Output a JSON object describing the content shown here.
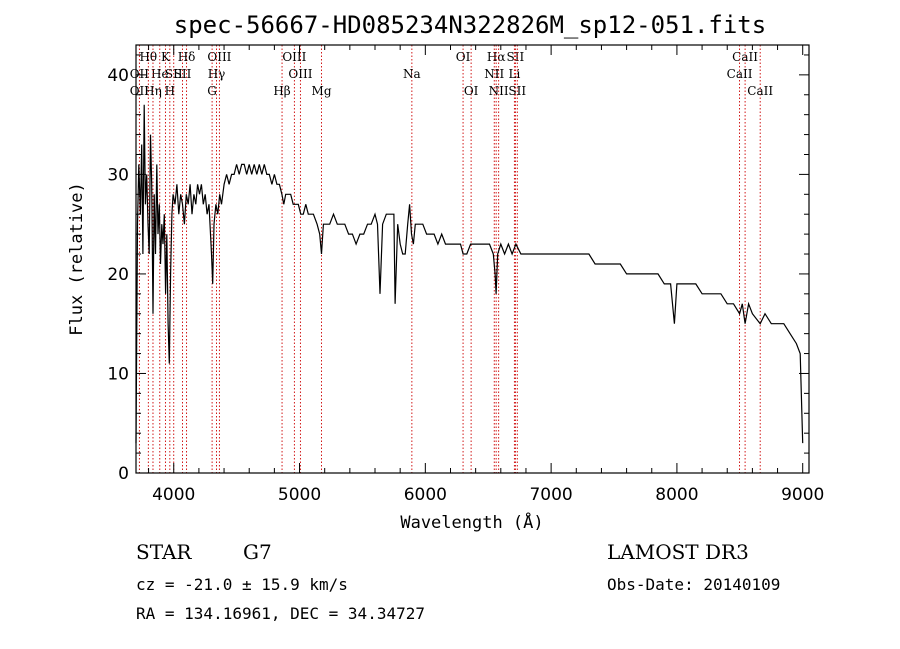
{
  "chart_data": {
    "type": "line",
    "title": "spec-56667-HD085234N322826M_sp12-051.fits",
    "xlabel": "Wavelength (Å)",
    "ylabel": "Flux (relative)",
    "xlim": [
      3700,
      9050
    ],
    "ylim": [
      0,
      43
    ],
    "x_ticks": [
      4000,
      5000,
      6000,
      7000,
      8000,
      9000
    ],
    "y_ticks": [
      0,
      10,
      20,
      30,
      40
    ],
    "grid": false,
    "series": [
      {
        "points": [
          [
            3700,
            3
          ],
          [
            3712,
            25
          ],
          [
            3722,
            31
          ],
          [
            3735,
            26
          ],
          [
            3745,
            33
          ],
          [
            3755,
            22
          ],
          [
            3765,
            37
          ],
          [
            3775,
            27
          ],
          [
            3785,
            30
          ],
          [
            3795,
            25
          ],
          [
            3805,
            22
          ],
          [
            3815,
            34
          ],
          [
            3825,
            29
          ],
          [
            3835,
            16
          ],
          [
            3845,
            28
          ],
          [
            3855,
            22
          ],
          [
            3865,
            31
          ],
          [
            3875,
            24
          ],
          [
            3885,
            27
          ],
          [
            3895,
            21
          ],
          [
            3905,
            25
          ],
          [
            3915,
            23
          ],
          [
            3925,
            26
          ],
          [
            3935,
            18
          ],
          [
            3945,
            24
          ],
          [
            3955,
            15
          ],
          [
            3965,
            11
          ],
          [
            3975,
            20
          ],
          [
            3985,
            26
          ],
          [
            3995,
            28
          ],
          [
            4010,
            27
          ],
          [
            4025,
            29
          ],
          [
            4040,
            26
          ],
          [
            4055,
            28
          ],
          [
            4070,
            27
          ],
          [
            4085,
            25
          ],
          [
            4100,
            28
          ],
          [
            4115,
            27
          ],
          [
            4130,
            29
          ],
          [
            4145,
            26
          ],
          [
            4160,
            28
          ],
          [
            4175,
            27
          ],
          [
            4190,
            29
          ],
          [
            4205,
            28
          ],
          [
            4220,
            29
          ],
          [
            4235,
            27
          ],
          [
            4250,
            28
          ],
          [
            4265,
            26
          ],
          [
            4280,
            27
          ],
          [
            4300,
            22
          ],
          [
            4310,
            19
          ],
          [
            4320,
            25
          ],
          [
            4335,
            27
          ],
          [
            4350,
            26
          ],
          [
            4365,
            28
          ],
          [
            4380,
            27
          ],
          [
            4400,
            29
          ],
          [
            4420,
            30
          ],
          [
            4440,
            29
          ],
          [
            4460,
            30
          ],
          [
            4480,
            30
          ],
          [
            4500,
            31
          ],
          [
            4520,
            30
          ],
          [
            4540,
            31
          ],
          [
            4560,
            31
          ],
          [
            4580,
            30
          ],
          [
            4600,
            31
          ],
          [
            4620,
            30
          ],
          [
            4640,
            31
          ],
          [
            4660,
            30
          ],
          [
            4680,
            31
          ],
          [
            4700,
            30
          ],
          [
            4720,
            31
          ],
          [
            4740,
            30
          ],
          [
            4760,
            30
          ],
          [
            4780,
            29
          ],
          [
            4800,
            30
          ],
          [
            4820,
            29
          ],
          [
            4840,
            29
          ],
          [
            4860,
            28
          ],
          [
            4875,
            27
          ],
          [
            4890,
            28
          ],
          [
            4910,
            28
          ],
          [
            4930,
            28
          ],
          [
            4950,
            27
          ],
          [
            4970,
            27
          ],
          [
            4990,
            27
          ],
          [
            5010,
            26
          ],
          [
            5030,
            26
          ],
          [
            5050,
            27
          ],
          [
            5070,
            26
          ],
          [
            5090,
            26
          ],
          [
            5110,
            26
          ],
          [
            5140,
            25
          ],
          [
            5160,
            24
          ],
          [
            5175,
            22
          ],
          [
            5190,
            25
          ],
          [
            5210,
            25
          ],
          [
            5240,
            25
          ],
          [
            5270,
            26
          ],
          [
            5300,
            25
          ],
          [
            5330,
            25
          ],
          [
            5360,
            25
          ],
          [
            5390,
            24
          ],
          [
            5420,
            24
          ],
          [
            5450,
            23
          ],
          [
            5480,
            24
          ],
          [
            5510,
            24
          ],
          [
            5540,
            25
          ],
          [
            5570,
            25
          ],
          [
            5600,
            26
          ],
          [
            5620,
            25
          ],
          [
            5640,
            18
          ],
          [
            5660,
            25
          ],
          [
            5690,
            26
          ],
          [
            5720,
            26
          ],
          [
            5750,
            26
          ],
          [
            5760,
            17
          ],
          [
            5780,
            25
          ],
          [
            5800,
            23
          ],
          [
            5820,
            22
          ],
          [
            5840,
            22
          ],
          [
            5860,
            25
          ],
          [
            5875,
            27
          ],
          [
            5890,
            24
          ],
          [
            5905,
            23
          ],
          [
            5920,
            25
          ],
          [
            5950,
            25
          ],
          [
            5980,
            25
          ],
          [
            6010,
            24
          ],
          [
            6040,
            24
          ],
          [
            6070,
            24
          ],
          [
            6100,
            23
          ],
          [
            6130,
            24
          ],
          [
            6160,
            23
          ],
          [
            6190,
            23
          ],
          [
            6220,
            23
          ],
          [
            6250,
            23
          ],
          [
            6280,
            23
          ],
          [
            6300,
            22
          ],
          [
            6330,
            22
          ],
          [
            6360,
            23
          ],
          [
            6390,
            23
          ],
          [
            6420,
            23
          ],
          [
            6450,
            23
          ],
          [
            6480,
            23
          ],
          [
            6510,
            23
          ],
          [
            6540,
            22
          ],
          [
            6555,
            20
          ],
          [
            6563,
            18
          ],
          [
            6575,
            22
          ],
          [
            6600,
            23
          ],
          [
            6630,
            22
          ],
          [
            6660,
            23
          ],
          [
            6690,
            22
          ],
          [
            6720,
            23
          ],
          [
            6760,
            22
          ],
          [
            6800,
            22
          ],
          [
            6850,
            22
          ],
          [
            6900,
            22
          ],
          [
            6950,
            22
          ],
          [
            7000,
            22
          ],
          [
            7050,
            22
          ],
          [
            7100,
            22
          ],
          [
            7150,
            22
          ],
          [
            7200,
            22
          ],
          [
            7250,
            22
          ],
          [
            7300,
            22
          ],
          [
            7350,
            21
          ],
          [
            7400,
            21
          ],
          [
            7450,
            21
          ],
          [
            7500,
            21
          ],
          [
            7550,
            21
          ],
          [
            7600,
            20
          ],
          [
            7650,
            20
          ],
          [
            7700,
            20
          ],
          [
            7750,
            20
          ],
          [
            7800,
            20
          ],
          [
            7850,
            20
          ],
          [
            7900,
            19
          ],
          [
            7950,
            19
          ],
          [
            7980,
            15
          ],
          [
            8000,
            19
          ],
          [
            8050,
            19
          ],
          [
            8100,
            19
          ],
          [
            8150,
            19
          ],
          [
            8200,
            18
          ],
          [
            8250,
            18
          ],
          [
            8300,
            18
          ],
          [
            8350,
            18
          ],
          [
            8400,
            17
          ],
          [
            8450,
            17
          ],
          [
            8498,
            16
          ],
          [
            8520,
            17
          ],
          [
            8542,
            15
          ],
          [
            8570,
            17
          ],
          [
            8600,
            16
          ],
          [
            8662,
            15
          ],
          [
            8700,
            16
          ],
          [
            8750,
            15
          ],
          [
            8800,
            15
          ],
          [
            8850,
            15
          ],
          [
            8900,
            14
          ],
          [
            8950,
            13
          ],
          [
            8980,
            12
          ],
          [
            9000,
            3
          ]
        ]
      }
    ],
    "annotation_color": "#cc0000",
    "line_color": "#000000",
    "line_markers": [
      {
        "label": "OII",
        "x": 3727,
        "row": 3
      },
      {
        "label": "Hθ",
        "x": 3798,
        "row": 1
      },
      {
        "label": "OII",
        "x": 3727,
        "row": 2
      },
      {
        "label": "He",
        "x": 3889,
        "row": 2
      },
      {
        "label": "Hη",
        "x": 3835,
        "row": 3
      },
      {
        "label": "K",
        "x": 3934,
        "row": 1
      },
      {
        "label": "SII",
        "x": 4000,
        "row": 2
      },
      {
        "label": "H",
        "x": 3969,
        "row": 3
      },
      {
        "label": "Hδ",
        "x": 4102,
        "row": 1
      },
      {
        "label": "SII",
        "x": 4070,
        "row": 2
      },
      {
        "label": "OIII",
        "x": 4363,
        "row": 1
      },
      {
        "label": "Hγ",
        "x": 4340,
        "row": 2
      },
      {
        "label": "G",
        "x": 4305,
        "row": 3
      },
      {
        "label": "Hβ",
        "x": 4861,
        "row": 3
      },
      {
        "label": "OIII",
        "x": 4959,
        "row": 1
      },
      {
        "label": "OIII",
        "x": 5007,
        "row": 2
      },
      {
        "label": "Mg",
        "x": 5175,
        "row": 3
      },
      {
        "label": "Na",
        "x": 5893,
        "row": 2
      },
      {
        "label": "OI",
        "x": 6300,
        "row": 1
      },
      {
        "label": "OI",
        "x": 6364,
        "row": 3
      },
      {
        "label": "Hα",
        "x": 6563,
        "row": 1
      },
      {
        "label": "NII",
        "x": 6548,
        "row": 2
      },
      {
        "label": "NII",
        "x": 6583,
        "row": 3
      },
      {
        "label": "SII",
        "x": 6716,
        "row": 1
      },
      {
        "label": "Li",
        "x": 6708,
        "row": 2
      },
      {
        "label": "SII",
        "x": 6731,
        "row": 3
      },
      {
        "label": "CaII",
        "x": 8542,
        "row": 1
      },
      {
        "label": "CaII",
        "x": 8498,
        "row": 2
      },
      {
        "label": "CaII",
        "x": 8662,
        "row": 3
      }
    ]
  },
  "info": {
    "object_class": "STAR",
    "subclass": "G7",
    "survey": "LAMOST DR3",
    "redshift": "cz = -21.0 ± 15.9 km/s",
    "obs_date": "Obs-Date: 20140109",
    "coords": "RA = 134.16961, DEC =  34.34727"
  }
}
